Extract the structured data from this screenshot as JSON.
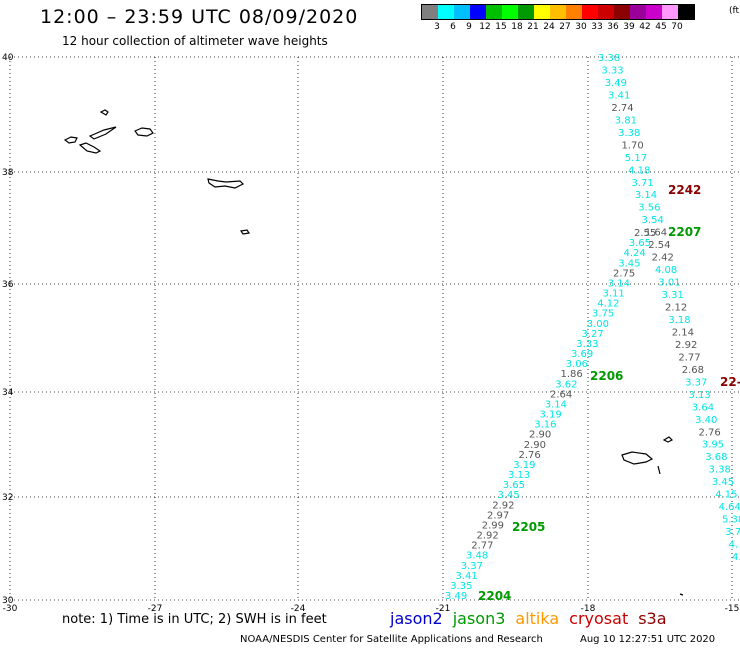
{
  "header": {
    "title": "12:00 – 23:59 UTC 08/09/2020",
    "subtitle": "12 hour collection of altimeter wave heights"
  },
  "legend": {
    "colors": [
      "#7f7f7f",
      "#00ffff",
      "#00bfff",
      "#0000ff",
      "#00bf00",
      "#00ff00",
      "#009900",
      "#ffff00",
      "#ffbf00",
      "#ff8000",
      "#ff0000",
      "#cc0000",
      "#8b0000",
      "#990099",
      "#cc00cc",
      "#ff99ff",
      "#000000"
    ],
    "labels": [
      "3",
      "6",
      "9",
      "12",
      "15",
      "18",
      "21",
      "24",
      "27",
      "30",
      "33",
      "36",
      "39",
      "42",
      "45",
      "70"
    ],
    "unit": "(ft)"
  },
  "axes": {
    "lat_labels": [
      "40",
      "38",
      "36",
      "34",
      "32",
      "30"
    ],
    "lon_labels": [
      "-30",
      "-27",
      "-24",
      "-21",
      "-18",
      "-15"
    ]
  },
  "passes": [
    {
      "label": "2242",
      "color": "#8b0000"
    },
    {
      "label": "2207",
      "color": "#009900"
    },
    {
      "label": "2206",
      "color": "#009900"
    },
    {
      "label": "2205",
      "color": "#009900"
    },
    {
      "label": "2204",
      "color": "#009900"
    },
    {
      "label": "22-",
      "color": "#8b0000"
    }
  ],
  "measurements": {
    "cyan_color": "#00e5e5",
    "gray_color": "#555555",
    "track_a": [
      "3.38",
      "3.33",
      "3.49",
      "3.41",
      "2.74",
      "3.81",
      "3.38",
      "1.70",
      "5.17",
      "4.18",
      "3.71",
      "3.14",
      "3.56",
      "3.54",
      "1.64",
      "2.54",
      "2.42",
      "4.08",
      "3.01",
      "3.31",
      "2.12",
      "3.18",
      "2.14",
      "2.92",
      "2.77",
      "2.68",
      "3.37",
      "3.13",
      "3.64",
      "3.40",
      "2.76",
      "3.95",
      "3.68",
      "3.38",
      "3.45",
      "4.15",
      "4.64",
      "5.38",
      "3.7",
      "4.",
      "4."
    ],
    "track_b": [
      "2.55",
      "3.65",
      "4.24",
      "3.45",
      "2.75",
      "3.14",
      "3.11",
      "4.12",
      "3.75",
      "3.00",
      "3.27",
      "3.33",
      "3.69",
      "3.06",
      "1.86",
      "3.62",
      "2.64",
      "3.14",
      "3.19",
      "3.16",
      "2.90",
      "2.90",
      "2.76",
      "3.19",
      "3.13",
      "3.65",
      "3.45",
      "2.92",
      "2.97",
      "2.99",
      "2.92",
      "2.77",
      "3.48",
      "3.37",
      "3.41",
      "3.35",
      "3.49"
    ]
  },
  "footer": {
    "note": "note: 1) Time is in UTC; 2) SWH is in feet",
    "missions": [
      {
        "name": "jason2",
        "color": "#0000cc"
      },
      {
        "name": "jason3",
        "color": "#009900"
      },
      {
        "name": "altika",
        "color": "#ff9900"
      },
      {
        "name": "cryosat",
        "color": "#cc0000"
      },
      {
        "name": "s3a",
        "color": "#8b0000"
      }
    ],
    "credit": "NOAA/NESDIS Center for Satellite Applications and Research",
    "timestamp": "Aug 10 12:27:51 UTC 2020"
  }
}
